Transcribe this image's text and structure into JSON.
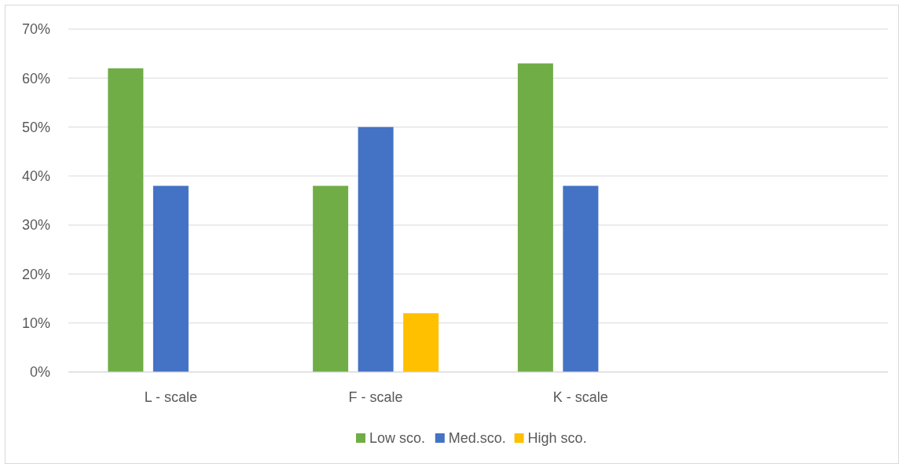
{
  "chart_data": {
    "type": "bar",
    "categories": [
      "L - scale",
      "F - scale",
      "K - scale",
      null
    ],
    "series": [
      {
        "name": "Low sco.",
        "color": "#70ad47",
        "values": [
          62,
          38,
          63,
          null
        ]
      },
      {
        "name": "Med.sco.",
        "color": "#4472c4",
        "values": [
          38,
          50,
          38,
          null
        ]
      },
      {
        "name": "High sco.",
        "color": "#ffc000",
        "values": [
          null,
          12,
          null,
          null
        ]
      }
    ],
    "ylim": [
      0,
      70
    ],
    "yticks": [
      {
        "value": 0,
        "label": "0%"
      },
      {
        "value": 10,
        "label": "10%"
      },
      {
        "value": 20,
        "label": "20%"
      },
      {
        "value": 30,
        "label": "30%"
      },
      {
        "value": 40,
        "label": "40%"
      },
      {
        "value": 50,
        "label": "50%"
      },
      {
        "value": 60,
        "label": "60%"
      },
      {
        "value": 70,
        "label": "70%"
      }
    ],
    "grid": "y",
    "legend": "bottom"
  }
}
